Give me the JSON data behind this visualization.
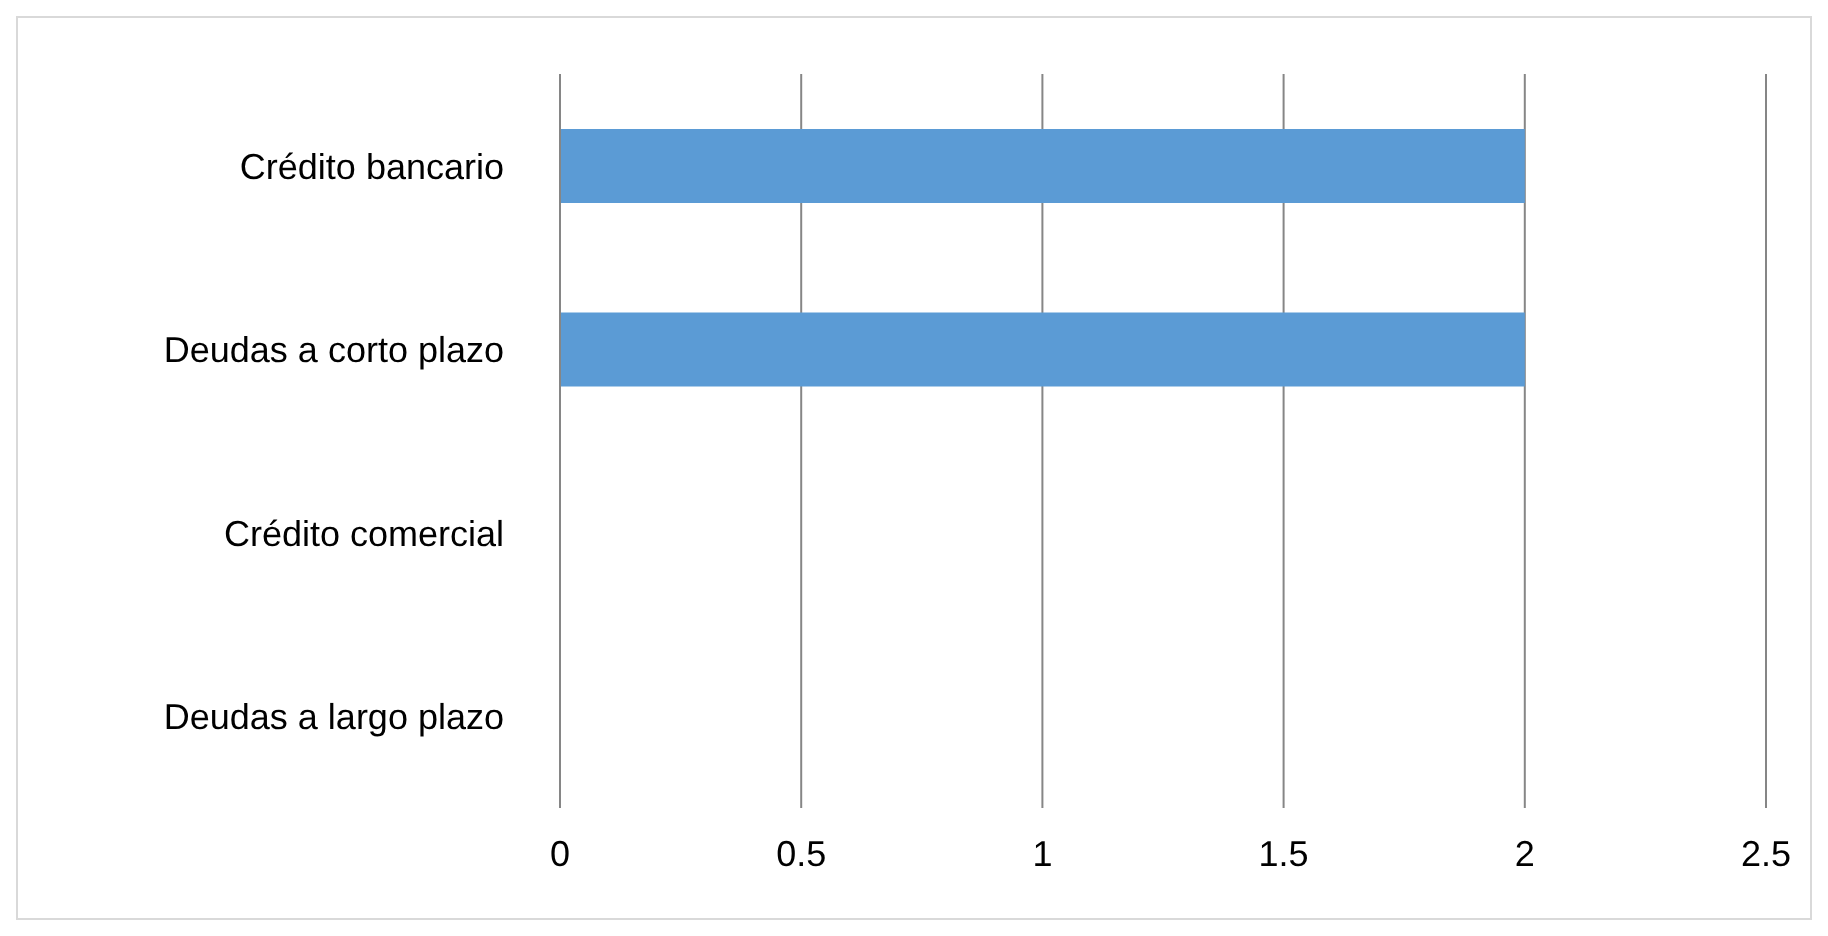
{
  "chart_data": {
    "type": "bar",
    "orientation": "horizontal",
    "categories": [
      "Crédito bancario",
      "Deudas a corto plazo",
      "Crédito comercial",
      "Deudas a largo plazo"
    ],
    "values": [
      2,
      2,
      0,
      0
    ],
    "color": "#5b9bd5",
    "xlim": [
      0,
      2.5
    ],
    "xticks": [
      0,
      0.5,
      1,
      1.5,
      2,
      2.5
    ],
    "grid": "x",
    "legend": false
  }
}
